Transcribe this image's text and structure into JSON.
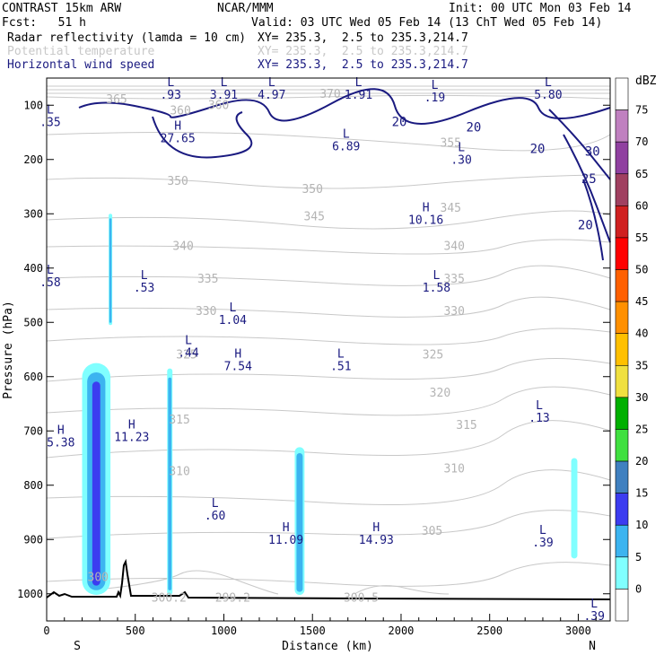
{
  "header": {
    "model": "CONTRAST 15km ARW",
    "org": "NCAR/MMM",
    "init": "Init: 00 UTC Mon 03 Feb 14",
    "fcst": "Fcst:   51 h",
    "valid": "Valid: 03 UTC Wed 05 Feb 14 (13 ChT Wed 05 Feb 14)",
    "field1": "Radar reflectivity (lamda = 10 cm)",
    "field1_xy": "XY= 235.3,  2.5 to 235.3,214.7",
    "field2": "Potential temperature",
    "field2_xy": "XY= 235.3,  2.5 to 235.3,214.7",
    "field3": "Horizontal wind speed",
    "field3_xy": "XY= 235.3,  2.5 to 235.3,214.7"
  },
  "colors": {
    "navy": "#1a1a80",
    "gray": "#c8c8c8",
    "refl_5": "#80ffff",
    "refl_10": "#3cb4f0",
    "refl_15": "#3c3cf0"
  },
  "chart_data": {
    "type": "cross-section",
    "xlabel": "Distance (km)",
    "ylabel": "Pressure (hPa)",
    "xlim": [
      0,
      3180
    ],
    "ylim": [
      1050,
      50
    ],
    "xticks": [
      "0",
      "500",
      "1000",
      "1500",
      "2000",
      "2500",
      "3000"
    ],
    "yticks": [
      "100",
      "200",
      "300",
      "400",
      "500",
      "600",
      "700",
      "800",
      "900",
      "1000"
    ],
    "x_end_labels": {
      "left": "S",
      "right": "N"
    },
    "colorbar": {
      "unit": "dBZ",
      "levels": [
        "75",
        "70",
        "65",
        "60",
        "55",
        "50",
        "45",
        "40",
        "35",
        "30",
        "25",
        "20",
        "15",
        "10",
        "5",
        "0"
      ],
      "colors": [
        "#ffffff",
        "#c080c0",
        "#9040a0",
        "#a04060",
        "#d02020",
        "#ff0000",
        "#ff6000",
        "#ff9000",
        "#ffc000",
        "#f0e040",
        "#00b000",
        "#40e040",
        "#4080c0",
        "#3c3cf0",
        "#3cb4f0",
        "#80ffff",
        "#ffffff"
      ]
    },
    "theta_labels": [
      {
        "text": "365",
        "x": 395,
        "p": 90
      },
      {
        "text": "360",
        "x": 755,
        "p": 110
      },
      {
        "text": "360",
        "x": 970,
        "p": 100
      },
      {
        "text": "370",
        "x": 1600,
        "p": 80
      },
      {
        "text": "355",
        "x": 2280,
        "p": 170
      },
      {
        "text": "350",
        "x": 740,
        "p": 240
      },
      {
        "text": "350",
        "x": 1500,
        "p": 255
      },
      {
        "text": "345",
        "x": 1510,
        "p": 305
      },
      {
        "text": "345",
        "x": 2280,
        "p": 290
      },
      {
        "text": "340",
        "x": 770,
        "p": 360
      },
      {
        "text": "340",
        "x": 2300,
        "p": 360
      },
      {
        "text": "335",
        "x": 910,
        "p": 420
      },
      {
        "text": "335",
        "x": 2300,
        "p": 420
      },
      {
        "text": "330",
        "x": 900,
        "p": 480
      },
      {
        "text": "330",
        "x": 2300,
        "p": 480
      },
      {
        "text": "325",
        "x": 790,
        "p": 560
      },
      {
        "text": "325",
        "x": 2180,
        "p": 560
      },
      {
        "text": "320",
        "x": 2220,
        "p": 630
      },
      {
        "text": "315",
        "x": 750,
        "p": 680
      },
      {
        "text": "315",
        "x": 2370,
        "p": 690
      },
      {
        "text": "310",
        "x": 750,
        "p": 775
      },
      {
        "text": "310",
        "x": 2300,
        "p": 770
      },
      {
        "text": "305",
        "x": 2175,
        "p": 885
      },
      {
        "text": "300",
        "x": 290,
        "p": 970
      },
      {
        "text": "300.2",
        "x": 690,
        "p": 1008
      },
      {
        "text": "299.2",
        "x": 1050,
        "p": 1008
      },
      {
        "text": "300.5",
        "x": 1775,
        "p": 1008
      }
    ],
    "wind_labels": [
      {
        "text": "20",
        "x": 1990,
        "p": 130
      },
      {
        "text": "20",
        "x": 2410,
        "p": 140
      },
      {
        "text": "20",
        "x": 2770,
        "p": 180
      },
      {
        "text": "30",
        "x": 3080,
        "p": 185
      },
      {
        "text": "25",
        "x": 3060,
        "p": 235
      },
      {
        "text": "20",
        "x": 3040,
        "p": 320
      }
    ],
    "extrema": [
      {
        "type": "L",
        "value": ".35",
        "x": 20,
        "p": 120
      },
      {
        "type": "L",
        "value": ".93",
        "x": 700,
        "p": 70
      },
      {
        "type": "L",
        "value": "3.91",
        "x": 1000,
        "p": 70
      },
      {
        "type": "L",
        "value": "4.97",
        "x": 1270,
        "p": 70
      },
      {
        "type": "L",
        "value": "1.91",
        "x": 1760,
        "p": 70
      },
      {
        "type": "L",
        "value": ".19",
        "x": 2190,
        "p": 75
      },
      {
        "type": "L",
        "value": "5.80",
        "x": 2830,
        "p": 70
      },
      {
        "type": "H",
        "value": "27.65",
        "x": 740,
        "p": 150
      },
      {
        "type": "L",
        "value": "6.89",
        "x": 1690,
        "p": 165
      },
      {
        "type": "L",
        "value": ".30",
        "x": 2340,
        "p": 190
      },
      {
        "type": "H",
        "value": "10.16",
        "x": 2140,
        "p": 300
      },
      {
        "type": "L",
        "value": ".58",
        "x": 20,
        "p": 415
      },
      {
        "type": "L",
        "value": ".53",
        "x": 550,
        "p": 425
      },
      {
        "type": "L",
        "value": "1.58",
        "x": 2200,
        "p": 425
      },
      {
        "type": "L",
        "value": "1.04",
        "x": 1050,
        "p": 485
      },
      {
        "type": "L",
        "value": ".44",
        "x": 800,
        "p": 545
      },
      {
        "type": "H",
        "value": "7.54",
        "x": 1080,
        "p": 570
      },
      {
        "type": "L",
        "value": ".51",
        "x": 1660,
        "p": 570
      },
      {
        "type": "L",
        "value": ".13",
        "x": 2780,
        "p": 665
      },
      {
        "type": "H",
        "value": "5.38",
        "x": 80,
        "p": 710
      },
      {
        "type": "H",
        "value": "11.23",
        "x": 480,
        "p": 700
      },
      {
        "type": "L",
        "value": ".60",
        "x": 950,
        "p": 845
      },
      {
        "type": "H",
        "value": "11.09",
        "x": 1350,
        "p": 890
      },
      {
        "type": "H",
        "value": "14.93",
        "x": 1860,
        "p": 890
      },
      {
        "type": "L",
        "value": ".39",
        "x": 2800,
        "p": 895
      },
      {
        "type": "L",
        "value": ".39",
        "x": 3090,
        "p": 1030
      }
    ],
    "reflectivity_cells": [
      {
        "x": [
          350,
          370
        ],
        "p": [
          300,
          505
        ],
        "max_dbz": 10
      },
      {
        "x": [
          200,
          360
        ],
        "p": [
          575,
          1002
        ],
        "max_dbz": 15
      },
      {
        "x": [
          680,
          710
        ],
        "p": [
          585,
          1002
        ],
        "max_dbz": 10
      },
      {
        "x": [
          1400,
          1455
        ],
        "p": [
          730,
          1002
        ],
        "max_dbz": 10
      },
      {
        "x": [
          2960,
          2995
        ],
        "p": [
          750,
          935
        ],
        "max_dbz": 5
      }
    ]
  }
}
